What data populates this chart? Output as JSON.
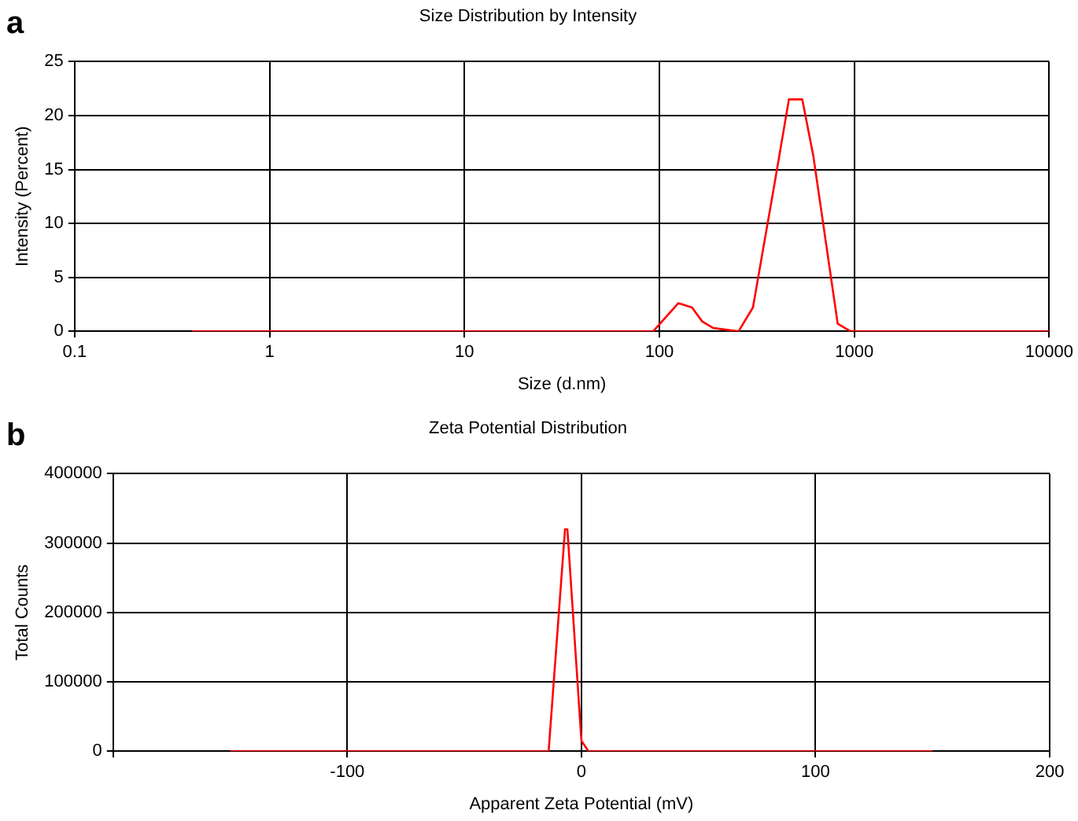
{
  "chart_data": [
    {
      "type": "line",
      "title": "Size Distribution by Intensity",
      "xlabel": "Size (d.nm)",
      "ylabel": "Intensity (Percent)",
      "annotations": [
        "a"
      ],
      "log": "x",
      "x": [
        0.4,
        93,
        125,
        147,
        166,
        189,
        255,
        302,
        389,
        462,
        541,
        617,
        822,
        955,
        10000
      ],
      "series": [
        {
          "color": "#ff0000",
          "values": [
            0,
            0,
            2.6,
            2.2,
            0.9,
            0.3,
            0,
            2.2,
            13.6,
            21.5,
            21.5,
            16.2,
            0.7,
            0,
            0
          ]
        }
      ],
      "xlim": [
        0.1,
        10000
      ],
      "xticks": [
        0.1,
        1,
        10,
        100,
        1000,
        10000
      ],
      "ylim": [
        0,
        25
      ],
      "yticks": [
        0,
        5,
        10,
        15,
        20,
        25
      ],
      "grid": true
    },
    {
      "type": "line",
      "title": "Zeta Potential Distribution",
      "xlabel": "Apparent Zeta Potential (mV)",
      "ylabel": "Total Counts",
      "annotations": [
        "b"
      ],
      "x": [
        -150,
        -14,
        -7,
        -6,
        0,
        3,
        150
      ],
      "series": [
        {
          "color": "#ff0000",
          "values": [
            0,
            0,
            320000,
            320000,
            15000,
            0,
            0
          ]
        }
      ],
      "xlim": [
        -200,
        200
      ],
      "xticks": [
        {
          "value": -200,
          "label": null
        },
        -100,
        0,
        100,
        200
      ],
      "ylim": [
        0,
        400000
      ],
      "yticks": [
        0,
        100000,
        200000,
        300000,
        400000
      ],
      "grid": true
    }
  ]
}
